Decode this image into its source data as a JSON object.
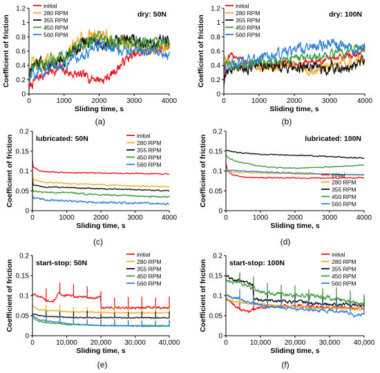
{
  "colors": {
    "initial": "#e8141c",
    "280 RPM": "#f5a81d",
    "355 RPM": "#111111",
    "450 RPM": "#3c9a3c",
    "560 RPM": "#2a7fd4"
  },
  "chart_data": [
    {
      "type": "line",
      "panel_label": "(a)",
      "annotation": "dry: 50N",
      "xlabel": "Sliding time, s",
      "ylabel": "Coefficient of friction",
      "xlim": [
        0,
        4000
      ],
      "ylim": [
        0,
        1.2
      ],
      "xticks": [
        0,
        1000,
        2000,
        3000,
        4000
      ],
      "xtick_labels": [
        "0",
        "1000",
        "2000",
        "3000",
        "4000"
      ],
      "yticks": [
        0,
        0.2,
        0.4,
        0.6,
        0.8,
        1,
        1.2
      ],
      "ytick_labels": [
        "0",
        "0.2",
        "0.4",
        "0.6",
        "0.8",
        "1",
        "1.2"
      ],
      "legend_position": "top-left",
      "grid": false,
      "series": [
        {
          "name": "initial",
          "noise": 0.05,
          "x": [
            0,
            60,
            200,
            500,
            900,
            1100,
            1500,
            1900,
            2100,
            2300,
            2500,
            2800,
            3100,
            3400,
            3700,
            4000
          ],
          "values": [
            0.08,
            0.12,
            0.2,
            0.3,
            0.35,
            0.3,
            0.25,
            0.22,
            0.2,
            0.25,
            0.35,
            0.5,
            0.55,
            0.6,
            0.62,
            0.65
          ]
        },
        {
          "name": "280 RPM",
          "noise": 0.08,
          "x": [
            0,
            100,
            500,
            1000,
            1300,
            1600,
            1900,
            2200,
            2500,
            2800,
            3200,
            3600,
            4000
          ],
          "values": [
            0.3,
            0.4,
            0.42,
            0.5,
            0.65,
            0.8,
            0.85,
            0.78,
            0.7,
            0.68,
            0.65,
            0.65,
            0.7
          ]
        },
        {
          "name": "355 RPM",
          "noise": 0.07,
          "x": [
            0,
            100,
            500,
            1000,
            1300,
            1600,
            2000,
            2400,
            2800,
            3200,
            3600,
            4000
          ],
          "values": [
            0.3,
            0.38,
            0.45,
            0.5,
            0.6,
            0.75,
            0.7,
            0.72,
            0.78,
            0.75,
            0.72,
            0.75
          ]
        },
        {
          "name": "450 RPM",
          "noise": 0.07,
          "x": [
            0,
            100,
            500,
            1000,
            1500,
            2000,
            2500,
            3000,
            3500,
            4000
          ],
          "values": [
            0.3,
            0.38,
            0.45,
            0.5,
            0.7,
            0.75,
            0.72,
            0.7,
            0.7,
            0.7
          ]
        },
        {
          "name": "560 RPM",
          "noise": 0.06,
          "x": [
            0,
            100,
            500,
            1000,
            1500,
            2000,
            2500,
            3000,
            3500,
            4000
          ],
          "values": [
            0.2,
            0.28,
            0.35,
            0.42,
            0.55,
            0.68,
            0.65,
            0.6,
            0.62,
            0.55
          ]
        }
      ]
    },
    {
      "type": "line",
      "panel_label": "(b)",
      "annotation": "dry: 100N",
      "xlabel": "Sliding time, s",
      "ylabel": "Coefficient of friction",
      "xlim": [
        0,
        4000
      ],
      "ylim": [
        0,
        1.2
      ],
      "xticks": [
        0,
        1000,
        2000,
        3000,
        4000
      ],
      "xtick_labels": [
        "0",
        "1000",
        "2000",
        "3000",
        "4000"
      ],
      "yticks": [
        0,
        0.2,
        0.4,
        0.6,
        0.8,
        1,
        1.2
      ],
      "ytick_labels": [
        "0",
        "0.2",
        "0.4",
        "0.6",
        "0.8",
        "1",
        "1.2"
      ],
      "legend_position": "top-left",
      "grid": false,
      "series": [
        {
          "name": "initial",
          "noise": 0.04,
          "x": [
            0,
            50,
            300,
            600,
            1000,
            2000,
            3000,
            4000
          ],
          "values": [
            0.1,
            0.45,
            0.55,
            0.45,
            0.4,
            0.42,
            0.48,
            0.6
          ]
        },
        {
          "name": "280 RPM",
          "noise": 0.05,
          "x": [
            0,
            300,
            1000,
            2000,
            2500,
            3000,
            3500,
            4000
          ],
          "values": [
            0.45,
            0.4,
            0.38,
            0.38,
            0.32,
            0.38,
            0.4,
            0.5
          ]
        },
        {
          "name": "355 RPM",
          "noise": 0.06,
          "x": [
            0,
            50,
            300,
            1000,
            2000,
            3000,
            3500,
            4000
          ],
          "values": [
            0.2,
            0.3,
            0.35,
            0.38,
            0.38,
            0.35,
            0.38,
            0.45
          ]
        },
        {
          "name": "450 RPM",
          "noise": 0.05,
          "x": [
            0,
            500,
            1000,
            2000,
            3000,
            3500,
            4000
          ],
          "values": [
            0.4,
            0.42,
            0.45,
            0.5,
            0.55,
            0.6,
            0.65
          ]
        },
        {
          "name": "560 RPM",
          "noise": 0.06,
          "x": [
            0,
            500,
            1000,
            1500,
            2000,
            2500,
            3000,
            3500,
            4000
          ],
          "values": [
            0.35,
            0.45,
            0.5,
            0.55,
            0.6,
            0.65,
            0.72,
            0.65,
            0.6
          ]
        }
      ]
    },
    {
      "type": "line",
      "panel_label": "(c)",
      "annotation": "lubricated: 50N",
      "xlabel": "Sliding time, s",
      "ylabel": "Coefficient of friction",
      "xlim": [
        0,
        4000
      ],
      "ylim": [
        0,
        0.2
      ],
      "xticks": [
        0,
        1000,
        2000,
        3000,
        4000
      ],
      "xtick_labels": [
        "0",
        "1000",
        "2000",
        "3000",
        "4000"
      ],
      "yticks": [
        0,
        0.05,
        0.1,
        0.15,
        0.2
      ],
      "ytick_labels": [
        "0",
        "0.05",
        "0.1",
        "0.15",
        "0.2"
      ],
      "legend_position": "top-right",
      "grid": false,
      "series": [
        {
          "name": "initial",
          "noise": 0.001,
          "x": [
            0,
            20,
            200,
            600,
            1500,
            3000,
            4000
          ],
          "values": [
            0.13,
            0.11,
            0.1,
            0.097,
            0.095,
            0.094,
            0.092
          ]
        },
        {
          "name": "280 RPM",
          "noise": 0.001,
          "x": [
            0,
            20,
            300,
            1000,
            2000,
            3000,
            4000
          ],
          "values": [
            0.1,
            0.078,
            0.072,
            0.069,
            0.065,
            0.062,
            0.06
          ]
        },
        {
          "name": "355 RPM",
          "noise": 0.001,
          "x": [
            0,
            20,
            300,
            1000,
            2000,
            3000,
            4000
          ],
          "values": [
            0.08,
            0.065,
            0.06,
            0.058,
            0.055,
            0.053,
            0.05
          ]
        },
        {
          "name": "450 RPM",
          "noise": 0.0015,
          "x": [
            0,
            20,
            300,
            1000,
            2000,
            3000,
            4000
          ],
          "values": [
            0.065,
            0.05,
            0.047,
            0.045,
            0.04,
            0.037,
            0.035
          ]
        },
        {
          "name": "560 RPM",
          "noise": 0.002,
          "x": [
            0,
            20,
            200,
            500,
            1000,
            2000,
            3000,
            4000
          ],
          "values": [
            0.04,
            0.035,
            0.03,
            0.027,
            0.024,
            0.021,
            0.019,
            0.017
          ]
        }
      ]
    },
    {
      "type": "line",
      "panel_label": "(d)",
      "annotation": "lubricated: 100N",
      "xlabel": "Sliding time, s",
      "ylabel": "Coefficient of friction",
      "xlim": [
        0,
        4000
      ],
      "ylim": [
        0,
        0.2
      ],
      "xticks": [
        0,
        1000,
        2000,
        3000,
        4000
      ],
      "xtick_labels": [
        "0",
        "1000",
        "2000",
        "3000",
        "4000"
      ],
      "yticks": [
        0,
        0.05,
        0.1,
        0.15,
        0.2
      ],
      "ytick_labels": [
        "0",
        "0.05",
        "0.1",
        "0.15",
        "0.2"
      ],
      "legend_position": "bottom-right",
      "grid": false,
      "series": [
        {
          "name": "initial",
          "noise": 0.001,
          "x": [
            0,
            50,
            200,
            500,
            1000,
            2000,
            3000,
            4000
          ],
          "values": [
            0.12,
            0.1,
            0.09,
            0.085,
            0.083,
            0.082,
            0.082,
            0.083
          ]
        },
        {
          "name": "280 RPM",
          "noise": 0.001,
          "x": [
            0,
            100,
            500,
            1000,
            2000,
            3000,
            4000
          ],
          "values": [
            0.1,
            0.098,
            0.096,
            0.095,
            0.093,
            0.091,
            0.09
          ]
        },
        {
          "name": "355 RPM",
          "noise": 0.001,
          "x": [
            0,
            100,
            500,
            1000,
            2000,
            3000,
            4000
          ],
          "values": [
            0.152,
            0.15,
            0.145,
            0.142,
            0.14,
            0.136,
            0.132
          ]
        },
        {
          "name": "450 RPM",
          "noise": 0.001,
          "x": [
            0,
            100,
            500,
            1000,
            1500,
            2000,
            3000,
            4000
          ],
          "values": [
            0.14,
            0.13,
            0.12,
            0.112,
            0.108,
            0.107,
            0.11,
            0.115
          ]
        },
        {
          "name": "560 RPM",
          "noise": 0.001,
          "x": [
            0,
            100,
            500,
            1000,
            2000,
            3000,
            4000
          ],
          "values": [
            0.1,
            0.102,
            0.1,
            0.098,
            0.095,
            0.092,
            0.09
          ]
        }
      ]
    },
    {
      "type": "line",
      "panel_label": "(e)",
      "annotation": "start-stop: 50N",
      "xlabel": "Sliding time, s",
      "ylabel": "Coefficient of friction",
      "xlim": [
        0,
        40000
      ],
      "ylim": [
        0,
        0.2
      ],
      "xticks": [
        0,
        10000,
        20000,
        30000,
        40000
      ],
      "xtick_labels": [
        "0",
        "10,000",
        "20,000",
        "30,000",
        "40,000"
      ],
      "yticks": [
        0,
        0.05,
        0.1,
        0.15,
        0.2
      ],
      "ytick_labels": [
        "0",
        "0.05",
        "0.1",
        "0.15",
        "0.2"
      ],
      "legend_position": "top-right",
      "grid": false,
      "series": [
        {
          "name": "initial",
          "noise": 0.0025,
          "x": [
            0,
            3000,
            4000,
            6000,
            7500,
            10000,
            12000,
            16000,
            19000,
            19900,
            20100,
            24000,
            28000,
            32000,
            36000,
            40000
          ],
          "values": [
            0.105,
            0.095,
            0.085,
            0.083,
            0.105,
            0.1,
            0.098,
            0.095,
            0.095,
            0.095,
            0.07,
            0.07,
            0.068,
            0.07,
            0.07,
            0.07
          ]
        },
        {
          "name": "280 RPM",
          "noise": 0.001,
          "x": [
            0,
            2000,
            10000,
            20000,
            30000,
            40000
          ],
          "values": [
            0.075,
            0.065,
            0.06,
            0.058,
            0.057,
            0.057
          ]
        },
        {
          "name": "355 RPM",
          "noise": 0.001,
          "x": [
            0,
            2000,
            10000,
            20000,
            30000,
            40000
          ],
          "values": [
            0.055,
            0.05,
            0.046,
            0.045,
            0.045,
            0.045
          ]
        },
        {
          "name": "450 RPM",
          "noise": 0.001,
          "x": [
            0,
            2000,
            10000,
            20000,
            30000,
            40000
          ],
          "values": [
            0.045,
            0.035,
            0.028,
            0.026,
            0.025,
            0.025
          ]
        },
        {
          "name": "560 RPM",
          "noise": 0.001,
          "x": [
            0,
            2000,
            10000,
            20000,
            30000,
            40000
          ],
          "values": [
            0.05,
            0.04,
            0.03,
            0.025,
            0.024,
            0.024
          ]
        }
      ]
    },
    {
      "type": "line",
      "panel_label": "(f)",
      "annotation": "start-stop: 100N",
      "xlabel": "Sliding time, s",
      "ylabel": "Coefficient of friction",
      "xlim": [
        0,
        40000
      ],
      "ylim": [
        0,
        0.2
      ],
      "xticks": [
        0,
        10000,
        20000,
        30000,
        40000
      ],
      "xtick_labels": [
        "0",
        "10,000",
        "20,000",
        "30,000",
        "40,000"
      ],
      "yticks": [
        0,
        0.05,
        0.1,
        0.15,
        0.2
      ],
      "ytick_labels": [
        "0",
        "0.05",
        "0.1",
        "0.15",
        "0.2"
      ],
      "legend_position": "top-right",
      "grid": false,
      "series": [
        {
          "name": "initial",
          "noise": 0.003,
          "x": [
            0,
            1500,
            3000,
            6000,
            10000,
            20000,
            30000,
            40000
          ],
          "values": [
            0.09,
            0.085,
            0.07,
            0.06,
            0.07,
            0.075,
            0.07,
            0.07
          ]
        },
        {
          "name": "280 RPM",
          "noise": 0.002,
          "x": [
            0,
            2000,
            8000,
            15000,
            25000,
            35000,
            40000
          ],
          "values": [
            0.09,
            0.085,
            0.08,
            0.075,
            0.07,
            0.068,
            0.065
          ]
        },
        {
          "name": "355 RPM",
          "noise": 0.003,
          "x": [
            0,
            2000,
            7000,
            7800,
            8000,
            12000,
            20000,
            30000,
            40000
          ],
          "values": [
            0.15,
            0.14,
            0.13,
            0.125,
            0.09,
            0.088,
            0.085,
            0.078,
            0.075
          ]
        },
        {
          "name": "450 RPM",
          "noise": 0.004,
          "x": [
            0,
            3000,
            7000,
            10000,
            15000,
            20000,
            25000,
            30000,
            35000,
            40000
          ],
          "values": [
            0.14,
            0.135,
            0.12,
            0.11,
            0.105,
            0.1,
            0.1,
            0.095,
            0.085,
            0.08
          ]
        },
        {
          "name": "560 RPM",
          "noise": 0.003,
          "x": [
            0,
            3000,
            8000,
            15000,
            20000,
            30000,
            35000,
            37000,
            40000
          ],
          "values": [
            0.1,
            0.095,
            0.08,
            0.07,
            0.065,
            0.062,
            0.06,
            0.05,
            0.055
          ]
        }
      ]
    }
  ]
}
